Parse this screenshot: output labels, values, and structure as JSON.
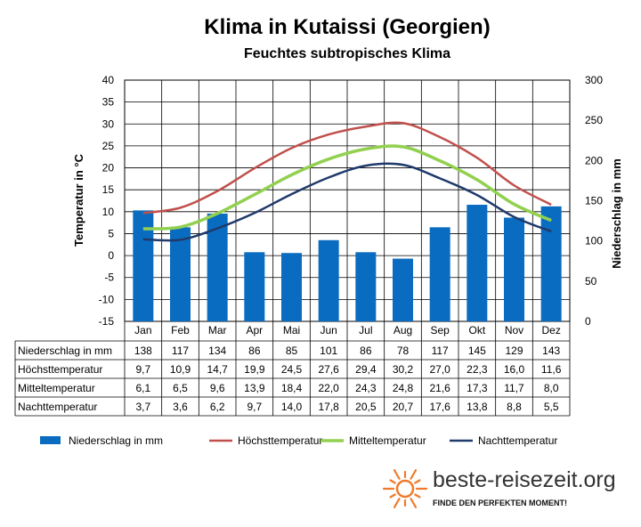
{
  "chart_data": {
    "type": "bar+line",
    "title": "Klima in Kutaissi (Georgien)",
    "subtitle": "Feuchtes  subtropisches  Klima",
    "categories": [
      "Jan",
      "Feb",
      "Mar",
      "Apr",
      "Mai",
      "Jun",
      "Jul",
      "Aug",
      "Sep",
      "Okt",
      "Nov",
      "Dez"
    ],
    "y_left": {
      "label": "Temperatur in °C",
      "min": -15,
      "max": 40,
      "step": 5
    },
    "y_right": {
      "label": "Niederschlag in mm",
      "min": 0,
      "max": 300,
      "step": 50
    },
    "series": [
      {
        "name": "Niederschlag in mm",
        "type": "bar",
        "axis": "right",
        "color": "#0a6cc0",
        "values": [
          138,
          117,
          134,
          86,
          85,
          101,
          86,
          78,
          117,
          145,
          129,
          143
        ],
        "labels": [
          "138",
          "117",
          "134",
          "86",
          "85",
          "101",
          "86",
          "78",
          "117",
          "145",
          "129",
          "143"
        ]
      },
      {
        "name": "Höchsttemperatur",
        "type": "line",
        "axis": "left",
        "color": "#c0504d",
        "values": [
          9.7,
          10.9,
          14.7,
          19.9,
          24.5,
          27.6,
          29.4,
          30.2,
          27.0,
          22.3,
          16.0,
          11.6
        ],
        "labels": [
          "9,7",
          "10,9",
          "14,7",
          "19,9",
          "24,5",
          "27,6",
          "29,4",
          "30,2",
          "27,0",
          "22,3",
          "16,0",
          "11,6"
        ]
      },
      {
        "name": "Mitteltemperatur",
        "type": "line",
        "axis": "left",
        "color": "#92d050",
        "values": [
          6.1,
          6.5,
          9.6,
          13.9,
          18.4,
          22.0,
          24.3,
          24.8,
          21.6,
          17.3,
          11.7,
          8.0
        ],
        "labels": [
          "6,1",
          "6,5",
          "9,6",
          "13,9",
          "18,4",
          "22,0",
          "24,3",
          "24,8",
          "21,6",
          "17,3",
          "11,7",
          "8,0"
        ]
      },
      {
        "name": "Nachttemperatur",
        "type": "line",
        "axis": "left",
        "color": "#1f3a6b",
        "values": [
          3.7,
          3.6,
          6.2,
          9.7,
          14.0,
          17.8,
          20.5,
          20.7,
          17.6,
          13.8,
          8.8,
          5.5
        ],
        "labels": [
          "3,7",
          "3,6",
          "6,2",
          "9,7",
          "14,0",
          "17,8",
          "20,5",
          "20,7",
          "17,6",
          "13,8",
          "8,8",
          "5,5"
        ]
      }
    ],
    "legend_position": "bottom"
  },
  "branding": {
    "site": "beste-reisezeit.org",
    "slogan": "FINDE DEN PERFEKTEN MOMENT!",
    "logo_color": "#f07a2a"
  }
}
